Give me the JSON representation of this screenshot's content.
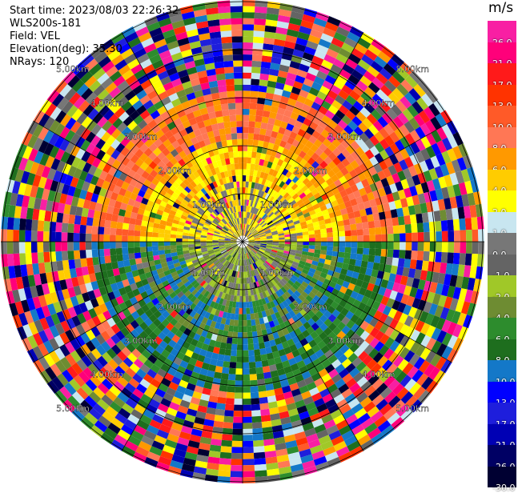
{
  "meta": {
    "start_time": "Start time: 2023/08/03 22:26:32",
    "instrument": "WLS200s-181",
    "field": "Field: VEL",
    "elevation": "Elevation(deg): 35.30",
    "nrays": "NRays: 120"
  },
  "ring_labels": [
    "1.00km",
    "2.00km",
    "3.00km",
    "4.00km",
    "5.00km"
  ],
  "colorbar": {
    "unit": "m/s",
    "levels": [
      {
        "label": "26.0",
        "color": "#f81fa3"
      },
      {
        "label": "21.0",
        "color": "#ff007a"
      },
      {
        "label": "17.0",
        "color": "#ff1a1a"
      },
      {
        "label": "13.0",
        "color": "#ff3300"
      },
      {
        "label": "10.0",
        "color": "#ff5a28"
      },
      {
        "label": "8.0",
        "color": "#ff7755"
      },
      {
        "label": "6.0",
        "color": "#ff9900"
      },
      {
        "label": "4.0",
        "color": "#ffcc00"
      },
      {
        "label": "2.0",
        "color": "#ffff00"
      },
      {
        "label": "1.0",
        "color": "#c8e6f0"
      },
      {
        "label": "0.0",
        "color": "#777777"
      },
      {
        "label": "-1.0",
        "color": "#646464"
      },
      {
        "label": "-2.0",
        "color": "#a0c828"
      },
      {
        "label": "-4.0",
        "color": "#6e8c32"
      },
      {
        "label": "-6.0",
        "color": "#2d8c2d"
      },
      {
        "label": "-8.0",
        "color": "#1e6e1e"
      },
      {
        "label": "-10.0",
        "color": "#1478c8"
      },
      {
        "label": "-13.0",
        "color": "#0000ff"
      },
      {
        "label": "-17.0",
        "color": "#1e1edc"
      },
      {
        "label": "-21.0",
        "color": "#0000b4"
      },
      {
        "label": "-26.0",
        "color": "#000064"
      },
      {
        "label": "-30.0",
        "color": "#000032"
      }
    ]
  }
}
